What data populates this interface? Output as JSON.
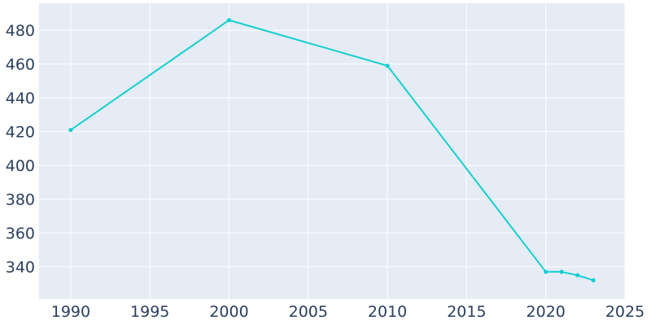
{
  "chart_data": {
    "type": "line",
    "title": "",
    "xlabel": "",
    "ylabel": "",
    "x": [
      1990,
      2000,
      2010,
      2020,
      2021,
      2022,
      2023
    ],
    "series": [
      {
        "values": [
          421,
          486,
          459,
          337,
          337,
          335,
          332
        ]
      }
    ],
    "xlim": [
      1988,
      2025
    ],
    "ylim": [
      321,
      496
    ],
    "x_ticks": [
      1990,
      1995,
      2000,
      2005,
      2010,
      2015,
      2020,
      2025
    ],
    "y_ticks": [
      340,
      360,
      380,
      400,
      420,
      440,
      460,
      480
    ],
    "x_tick_labels": [
      "1990",
      "1995",
      "2000",
      "2005",
      "2010",
      "2015",
      "2020",
      "2025"
    ],
    "y_tick_labels": [
      "340",
      "360",
      "380",
      "400",
      "420",
      "440",
      "460",
      "480"
    ],
    "grid": true,
    "colors": {
      "plot_background": "#e5ecf6",
      "grid": "#ffffff",
      "line": "#17cfcf",
      "text": "#2a3f5f"
    }
  }
}
